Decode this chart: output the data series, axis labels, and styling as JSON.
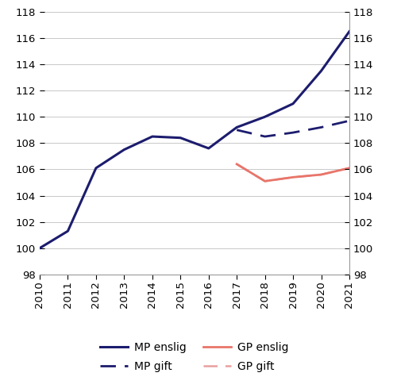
{
  "years": [
    2010,
    2011,
    2012,
    2013,
    2014,
    2015,
    2016,
    2017,
    2018,
    2019,
    2020,
    2021
  ],
  "MP_enslig": [
    100.0,
    101.3,
    106.1,
    107.5,
    108.5,
    108.4,
    107.6,
    109.2,
    110.0,
    111.0,
    113.5,
    116.5
  ],
  "MP_gift_start": 2017,
  "MP_gift": [
    109.0,
    108.5,
    108.8,
    109.2,
    109.7
  ],
  "GP_enslig_start": 2017,
  "GP_enslig": [
    106.4,
    105.1,
    105.4,
    105.6,
    106.1
  ],
  "GP_gift_start": 2017,
  "GP_gift": [
    106.4,
    105.1,
    105.4,
    105.6,
    106.1
  ],
  "colors": {
    "navy": "#1c1c6e",
    "red_solid": "#e8756a",
    "red_dashed": "#e8a0a0"
  },
  "ylim": [
    98,
    118
  ],
  "yticks": [
    98,
    100,
    102,
    104,
    106,
    108,
    110,
    112,
    114,
    116,
    118
  ],
  "xlim_left": 2010,
  "xlim_right": 2021,
  "background_color": "#ffffff",
  "legend_labels": [
    "MP enslig",
    "MP gift",
    "GP enslig",
    "GP gift"
  ],
  "tick_fontsize": 9.5,
  "legend_fontsize": 10
}
